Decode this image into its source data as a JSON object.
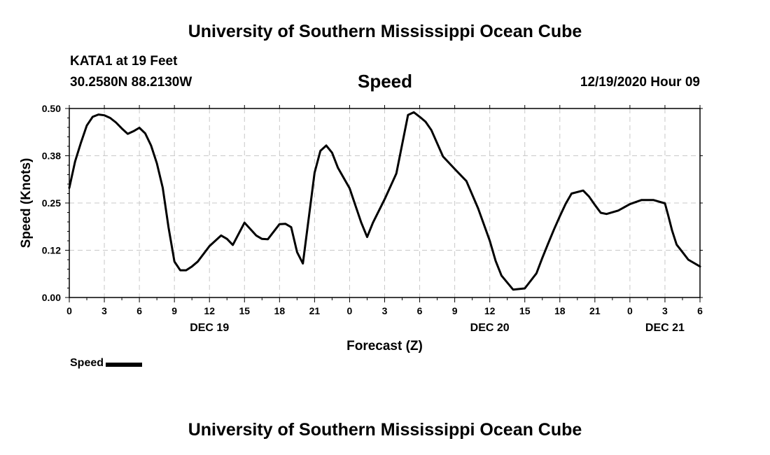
{
  "header": {
    "title": "University of Southern Mississippi Ocean Cube",
    "station": "KATA1 at 19 Feet",
    "coords": "30.2580N 88.2130W",
    "variable": "Speed",
    "datetime": "12/19/2020 Hour 09"
  },
  "footer": {
    "title": "University of Southern Mississippi Ocean Cube"
  },
  "legend": {
    "label": "Speed"
  },
  "chart_data": {
    "type": "line",
    "title": "Speed",
    "xlabel": "Forecast (Z)",
    "ylabel": "Speed (Knots)",
    "xlim": [
      0,
      54
    ],
    "ylim": [
      0,
      0.5
    ],
    "yticks": [
      "0.00",
      "0.12",
      "0.25",
      "0.38",
      "0.50"
    ],
    "xticks": [
      "0",
      "3",
      "6",
      "9",
      "12",
      "15",
      "18",
      "21",
      "0",
      "3",
      "6",
      "9",
      "12",
      "15",
      "18",
      "21",
      "0",
      "3",
      "6"
    ],
    "date_labels": [
      {
        "label": "DEC 19",
        "hour": 12
      },
      {
        "label": "DEC 20",
        "hour": 36
      },
      {
        "label": "DEC 21",
        "hour": 51
      }
    ],
    "grid": true,
    "series": [
      {
        "name": "Speed",
        "color": "#000000",
        "x": [
          0,
          0.5,
          1,
          1.5,
          2,
          2.5,
          3,
          3.5,
          4,
          4.5,
          5,
          5.5,
          6,
          6.5,
          7,
          7.5,
          8,
          8.5,
          9,
          9.5,
          10,
          10.5,
          11,
          12,
          13,
          13.5,
          14,
          15,
          16,
          16.5,
          17,
          18,
          18.5,
          19,
          19.5,
          20,
          21,
          21.5,
          22,
          22.5,
          23,
          24,
          25,
          25.5,
          26,
          27,
          28,
          29,
          29.5,
          30,
          30.5,
          31,
          32,
          33,
          34,
          35,
          36,
          36.5,
          37,
          38,
          39,
          40,
          40.5,
          41,
          41.5,
          42,
          42.5,
          43,
          44,
          44.5,
          45,
          45.5,
          46,
          47,
          48,
          49,
          50,
          51,
          51.3,
          51.6,
          52,
          52.5,
          53,
          54
        ],
        "values": [
          0.29,
          0.36,
          0.41,
          0.455,
          0.478,
          0.484,
          0.482,
          0.475,
          0.463,
          0.447,
          0.433,
          0.44,
          0.449,
          0.434,
          0.402,
          0.355,
          0.29,
          0.185,
          0.095,
          0.072,
          0.072,
          0.082,
          0.095,
          0.136,
          0.164,
          0.155,
          0.139,
          0.198,
          0.164,
          0.155,
          0.154,
          0.194,
          0.195,
          0.186,
          0.12,
          0.09,
          0.33,
          0.388,
          0.402,
          0.383,
          0.343,
          0.289,
          0.198,
          0.16,
          0.198,
          0.26,
          0.328,
          0.483,
          0.49,
          0.478,
          0.465,
          0.443,
          0.373,
          0.34,
          0.308,
          0.236,
          0.15,
          0.097,
          0.058,
          0.021,
          0.024,
          0.064,
          0.105,
          0.143,
          0.18,
          0.215,
          0.248,
          0.275,
          0.283,
          0.267,
          0.245,
          0.224,
          0.221,
          0.23,
          0.247,
          0.258,
          0.258,
          0.249,
          0.215,
          0.178,
          0.14,
          0.12,
          0.1,
          0.082
        ]
      }
    ]
  }
}
